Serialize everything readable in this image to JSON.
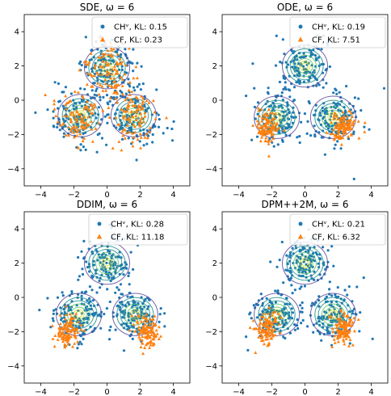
{
  "colors": {
    "blue": "#1f77b4",
    "orange": "#ff7f0e",
    "contour_outer": "#5b4b9a",
    "contour_mid": "#21918c",
    "contour_inner": "#5ec962",
    "contour_core": "#c8e020"
  },
  "chart_data": [
    {
      "type": "scatter",
      "title": "SDE, ω = 6",
      "xlim": [
        -5,
        5
      ],
      "ylim": [
        -5,
        5
      ],
      "xticks": [
        -4,
        -2,
        0,
        2,
        4
      ],
      "yticks": [
        -4,
        -2,
        0,
        2,
        4
      ],
      "legend": "top-right",
      "series": [
        {
          "name": "CHᵛ, KL: 0.15",
          "marker": "circle",
          "color": "#1f77b4",
          "spread": 0.75,
          "n": 420
        },
        {
          "name": "CF, KL: 0.23",
          "marker": "triangle",
          "color": "#ff7f0e",
          "spread": 0.7,
          "n": 300,
          "centers": [
            [
              0,
              1.8
            ],
            [
              -1.7,
              -0.9
            ],
            [
              1.7,
              -0.9
            ]
          ]
        }
      ],
      "contours": [
        {
          "x": 0,
          "y": 1.9
        },
        {
          "x": -1.6,
          "y": -0.9
        },
        {
          "x": 1.6,
          "y": -0.9
        }
      ]
    },
    {
      "type": "scatter",
      "title": "ODE, ω = 6",
      "xlim": [
        -5,
        5
      ],
      "ylim": [
        -5,
        5
      ],
      "xticks": [
        -4,
        -2,
        0,
        2,
        4
      ],
      "yticks": [
        -4,
        -2,
        0,
        2,
        4
      ],
      "legend": "top-right",
      "series": [
        {
          "name": "CHᵛ, KL: 0.19",
          "marker": "circle",
          "color": "#1f77b4",
          "spread": 0.7,
          "n": 420
        },
        {
          "name": "CF, KL: 7.51",
          "marker": "triangle",
          "color": "#ff7f0e",
          "spread": 0.35,
          "n": 220,
          "centers": [
            [
              -2.3,
              -1.6
            ],
            [
              2.3,
              -1.6
            ]
          ]
        }
      ],
      "contours": [
        {
          "x": 0,
          "y": 2.0
        },
        {
          "x": -1.7,
          "y": -1.0
        },
        {
          "x": 1.7,
          "y": -1.0
        }
      ]
    },
    {
      "type": "scatter",
      "title": "DDIM, ω = 6",
      "xlim": [
        -5,
        5
      ],
      "ylim": [
        -5,
        5
      ],
      "xticks": [
        -4,
        -2,
        0,
        2,
        4
      ],
      "yticks": [
        -4,
        -2,
        0,
        2,
        4
      ],
      "legend": "top-right",
      "series": [
        {
          "name": "CHᵛ, KL: 0.28",
          "marker": "circle",
          "color": "#1f77b4",
          "spread": 0.7,
          "n": 420
        },
        {
          "name": "CF, KL: 11.18",
          "marker": "triangle",
          "color": "#ff7f0e",
          "spread": 0.35,
          "n": 220,
          "centers": [
            [
              -2.4,
              -2.0
            ],
            [
              2.4,
              -2.0
            ]
          ]
        }
      ],
      "contours": [
        {
          "x": 0,
          "y": 2.0
        },
        {
          "x": -1.7,
          "y": -1.0
        },
        {
          "x": 1.7,
          "y": -1.0
        }
      ]
    },
    {
      "type": "scatter",
      "title": "DPM++2M, ω = 6",
      "xlim": [
        -5,
        5
      ],
      "ylim": [
        -5,
        5
      ],
      "xticks": [
        -4,
        -2,
        0,
        2,
        4
      ],
      "yticks": [
        -4,
        -2,
        0,
        2,
        4
      ],
      "legend": "top-right",
      "series": [
        {
          "name": "CHᵛ, KL: 0.21",
          "marker": "circle",
          "color": "#1f77b4",
          "spread": 0.7,
          "n": 420
        },
        {
          "name": "CF, KL: 6.32",
          "marker": "triangle",
          "color": "#ff7f0e",
          "spread": 0.35,
          "n": 220,
          "centers": [
            [
              -2.3,
              -1.8
            ],
            [
              2.3,
              -1.8
            ]
          ]
        }
      ],
      "contours": [
        {
          "x": 0,
          "y": 2.0
        },
        {
          "x": -1.7,
          "y": -1.0
        },
        {
          "x": 1.7,
          "y": -1.0
        }
      ]
    }
  ]
}
